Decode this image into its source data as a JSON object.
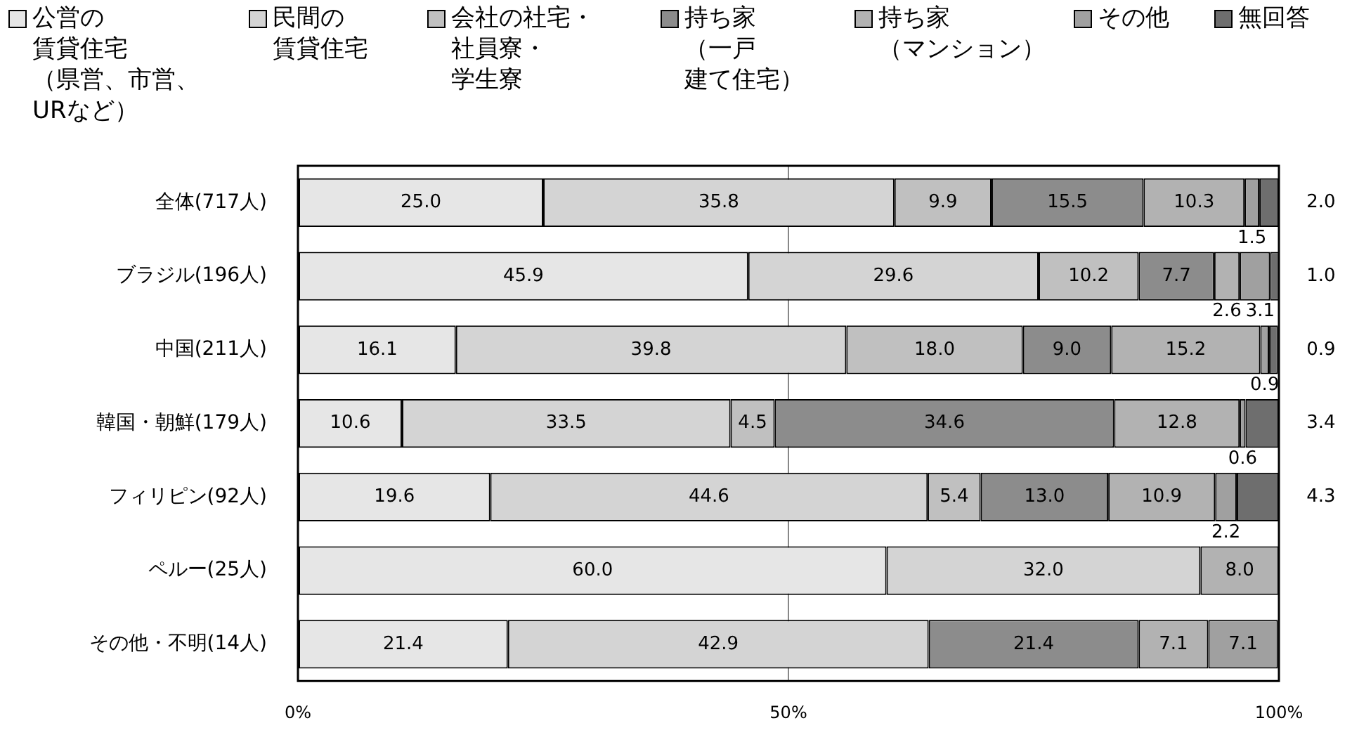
{
  "chart_data": {
    "type": "bar",
    "orientation": "horizontal",
    "stacked": true,
    "grid": "x",
    "legend": "top",
    "categories": [
      "全体(717人)",
      "ブラジル(196人)",
      "中国(211人)",
      "韓国・朝鮮(179人)",
      "フィリピン(92人)",
      "ペルー(25人)",
      "その他・不明(14人)"
    ],
    "xlim": [
      0,
      100
    ],
    "xticks": [
      {
        "value": 0,
        "label": "0%"
      },
      {
        "value": 50,
        "label": "50%"
      },
      {
        "value": 100,
        "label": "100%"
      }
    ],
    "series": [
      {
        "name": "公営の賃貸住宅（県営、市営、URなど）",
        "color": "#e6e6e6",
        "values": [
          25.0,
          45.9,
          16.1,
          10.6,
          19.6,
          60.0,
          21.4
        ],
        "value_labels": [
          "25.0",
          "45.9",
          "16.1",
          "10.6",
          "19.6",
          "60.0",
          "21.4"
        ]
      },
      {
        "name": "民間の賃貸住宅",
        "color": "#d4d4d4",
        "values": [
          35.8,
          29.6,
          39.8,
          33.5,
          44.6,
          32.0,
          42.9
        ],
        "value_labels": [
          "35.8",
          "29.6",
          "39.8",
          "33.5",
          "44.6",
          "32.0",
          "42.9"
        ]
      },
      {
        "name": "会社の社宅・社員寮・学生寮",
        "color": "#c0c0c0",
        "values": [
          9.9,
          10.2,
          18.0,
          4.5,
          5.4,
          null,
          null
        ],
        "value_labels": [
          "9.9",
          "10.2",
          "18.0",
          "4.5",
          "5.4",
          null,
          null
        ]
      },
      {
        "name": "持ち家（一戸建て住宅）",
        "color": "#8c8c8c",
        "values": [
          15.5,
          7.7,
          9.0,
          34.6,
          13.0,
          null,
          21.4
        ],
        "value_labels": [
          "15.5",
          "7.7",
          "9.0",
          "34.6",
          "13.0",
          null,
          "21.4"
        ]
      },
      {
        "name": "持ち家（マンション）",
        "color": "#b2b2b2",
        "values": [
          10.3,
          2.6,
          15.2,
          12.8,
          10.9,
          8.0,
          7.1
        ],
        "value_labels": [
          "10.3",
          "2.6",
          "15.2",
          "12.8",
          "10.9",
          "8.0",
          "7.1"
        ]
      },
      {
        "name": "その他",
        "color": "#a0a0a0",
        "values": [
          1.5,
          3.1,
          0.9,
          0.6,
          2.2,
          null,
          7.1
        ],
        "value_labels": [
          "1.5",
          "3.1",
          "0.9",
          "0.6",
          "2.2",
          null,
          "7.1"
        ]
      },
      {
        "name": "無回答",
        "color": "#6e6e6e",
        "values": [
          2.0,
          1.0,
          0.9,
          3.4,
          4.3,
          null,
          null
        ],
        "value_labels": [
          "2.0",
          "1.0",
          "0.9",
          "3.4",
          "4.3",
          null,
          null
        ]
      }
    ]
  }
}
